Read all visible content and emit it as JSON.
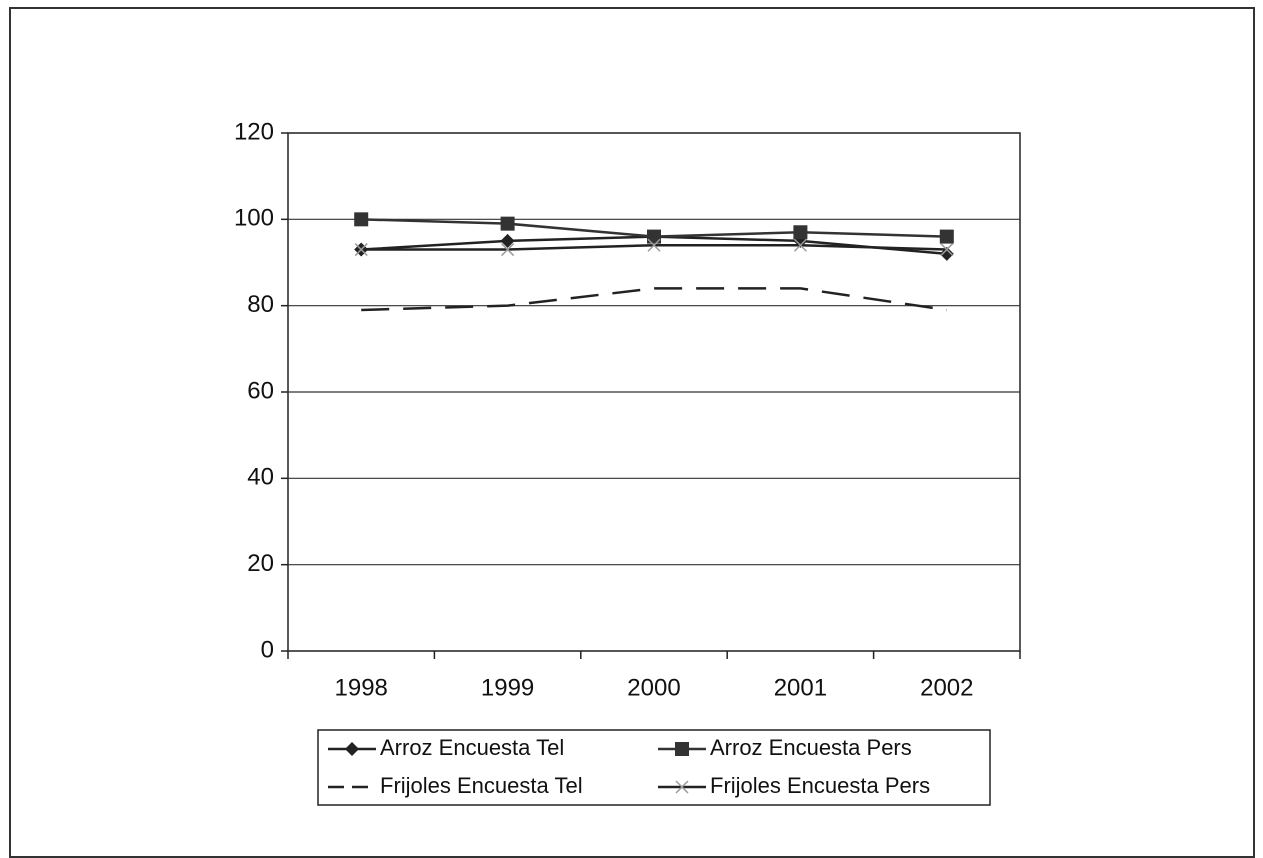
{
  "chart_data": {
    "type": "line",
    "categories": [
      "1998",
      "1999",
      "2000",
      "2001",
      "2002"
    ],
    "series": [
      {
        "name": "Arroz Encuesta Tel",
        "color": "#222222",
        "marker": "diamond",
        "dash": "solid",
        "values": [
          93,
          95,
          96,
          95,
          92
        ]
      },
      {
        "name": "Arroz Encuesta Pers",
        "color": "#333333",
        "marker": "square",
        "dash": "solid",
        "values": [
          100,
          99,
          96,
          97,
          96
        ]
      },
      {
        "name": "Frijoles Encuesta Tel",
        "color": "#222222",
        "marker": "none",
        "dash": "dashed",
        "values": [
          79,
          80,
          84,
          84,
          79
        ]
      },
      {
        "name": "Frijoles Encuesta Pers",
        "color": "#222222",
        "marker": "x",
        "dash": "solid",
        "values": [
          93,
          93,
          94,
          94,
          93
        ]
      }
    ],
    "ylim": [
      0,
      120
    ],
    "yticks": [
      0,
      20,
      40,
      60,
      80,
      100,
      120
    ],
    "grid": true
  }
}
